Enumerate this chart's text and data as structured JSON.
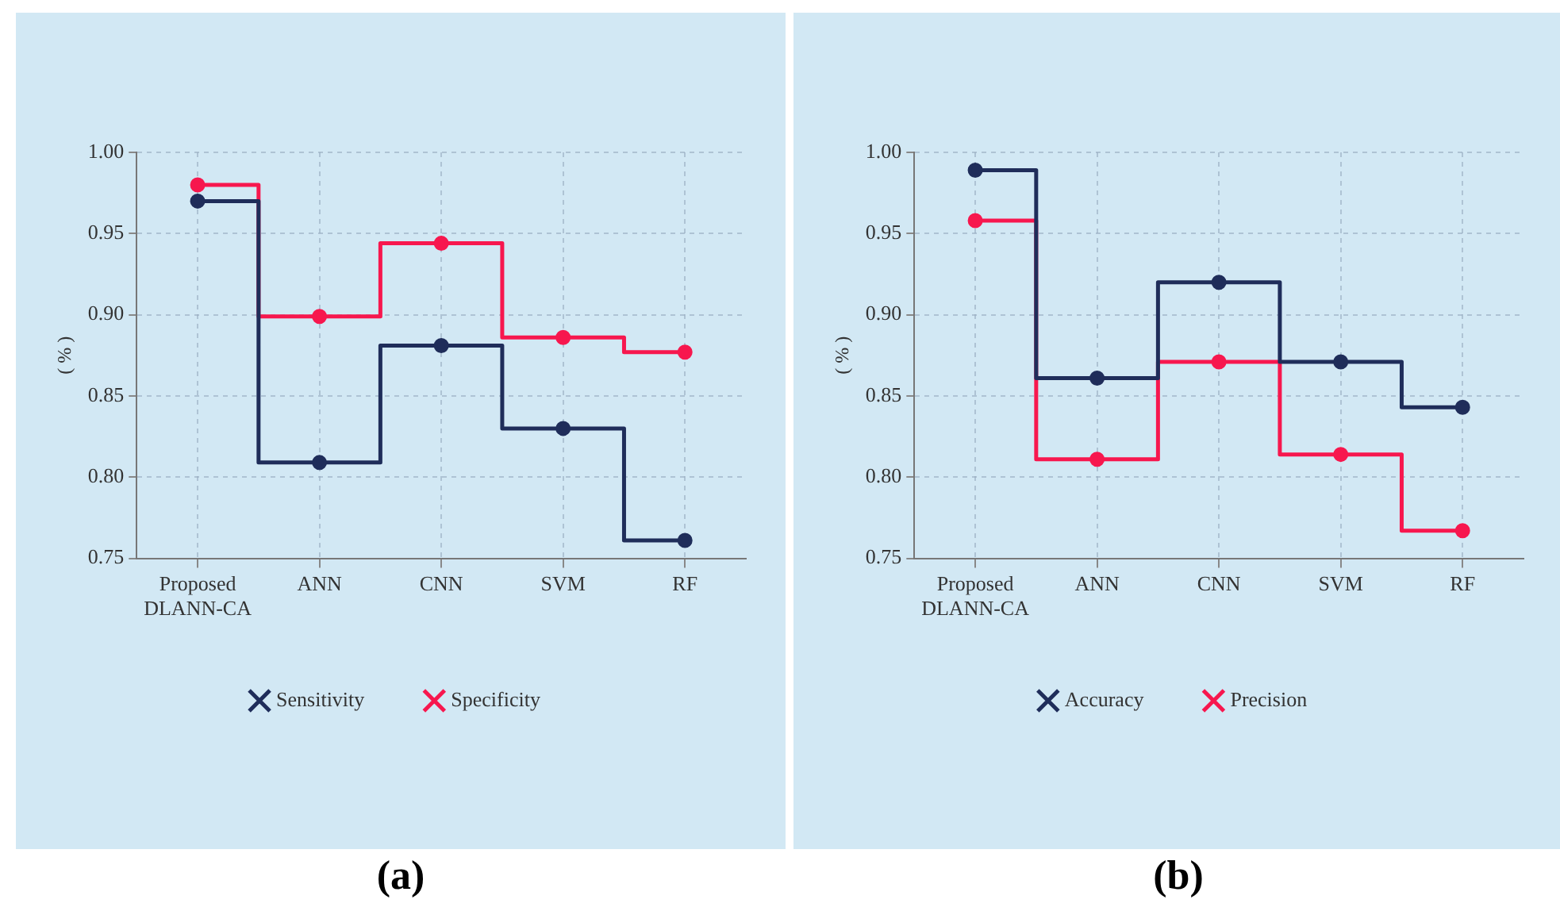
{
  "chart_data": [
    {
      "type": "step",
      "title": "(a)",
      "ylabel": "( % )",
      "categories": [
        "Proposed DLANN-CA",
        "ANN",
        "CNN",
        "SVM",
        "RF"
      ],
      "series": [
        {
          "name": "Sensitivity",
          "color": "#1f2d5a",
          "values": [
            0.97,
            0.809,
            0.881,
            0.83,
            0.761
          ]
        },
        {
          "name": "Specificity",
          "color": "#f7174e",
          "values": [
            0.98,
            0.899,
            0.944,
            0.886,
            0.877
          ]
        }
      ],
      "ylim": [
        0.75,
        1.0
      ],
      "yticks": [
        {
          "value": 0.75,
          "label": "0.75"
        },
        {
          "value": 0.8,
          "label": "0.80"
        },
        {
          "value": 0.85,
          "label": "0.85"
        },
        {
          "value": 0.9,
          "label": "0.90"
        },
        {
          "value": 0.95,
          "label": "0.95"
        },
        {
          "value": 1.0,
          "label": "1.00"
        }
      ],
      "grid": true,
      "legend": "bottom",
      "marker": "circle",
      "line_style": "solid"
    },
    {
      "type": "step",
      "title": "(b)",
      "ylabel": "( % )",
      "categories": [
        "Proposed DLANN-CA",
        "ANN",
        "CNN",
        "SVM",
        "RF"
      ],
      "series": [
        {
          "name": "Accuracy",
          "color": "#1f2d5a",
          "values": [
            0.989,
            0.861,
            0.92,
            0.871,
            0.843
          ]
        },
        {
          "name": "Precision",
          "color": "#f7174e",
          "values": [
            0.958,
            0.811,
            0.871,
            0.814,
            0.767
          ]
        }
      ],
      "ylim": [
        0.75,
        1.0
      ],
      "yticks": [
        {
          "value": 0.75,
          "label": "0.75"
        },
        {
          "value": 0.8,
          "label": "0.80"
        },
        {
          "value": 0.85,
          "label": "0.85"
        },
        {
          "value": 0.9,
          "label": "0.90"
        },
        {
          "value": 0.95,
          "label": "0.95"
        },
        {
          "value": 1.0,
          "label": "1.00"
        }
      ],
      "grid": true,
      "legend": "bottom",
      "marker": "circle",
      "line_style": "solid"
    }
  ]
}
